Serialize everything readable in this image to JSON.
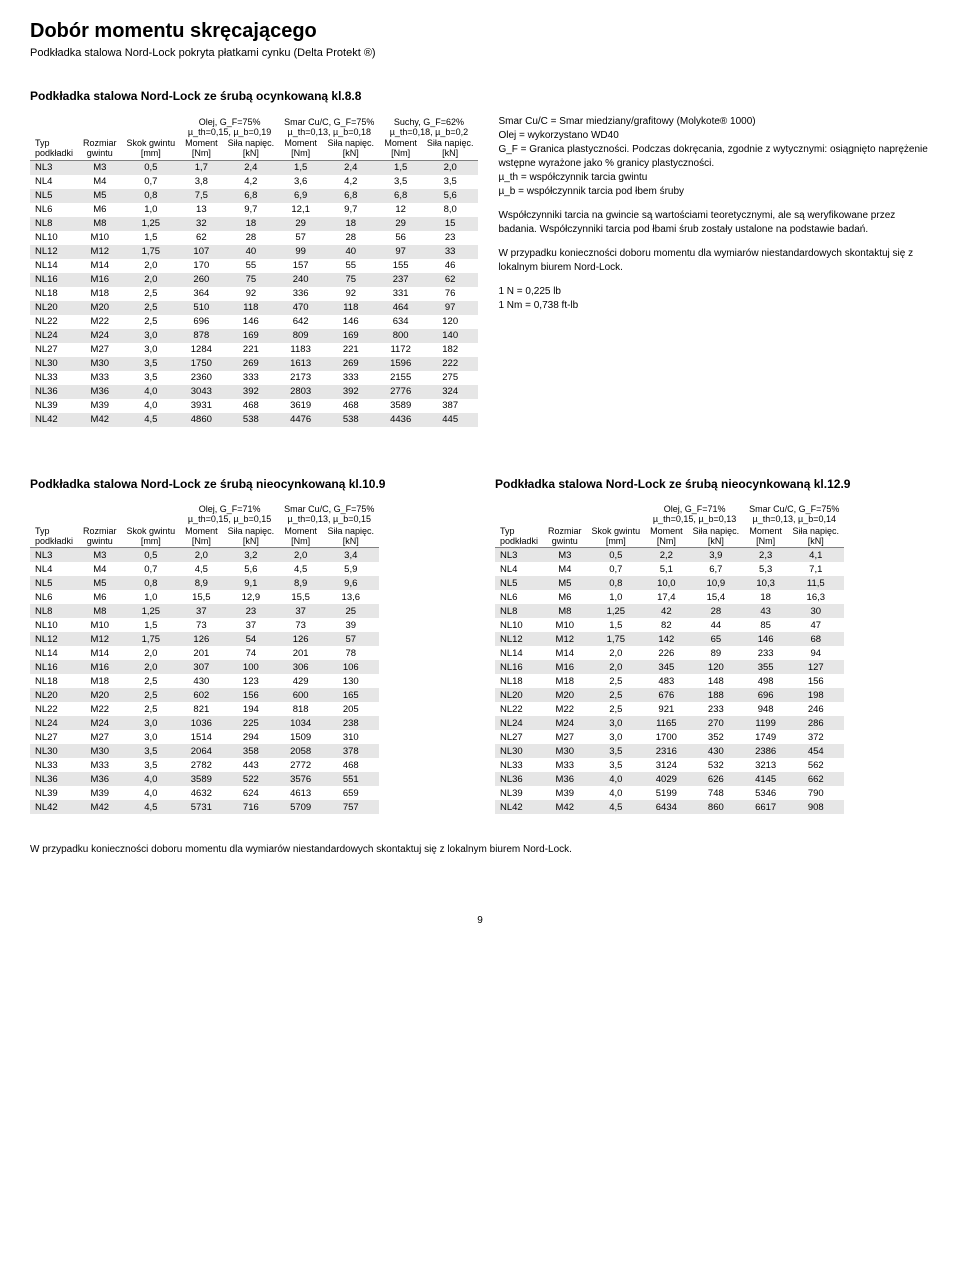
{
  "title": "Dobór momentu skręcającego",
  "subtitle": "Podkładka stalowa Nord-Lock pokryta płatkami cynku (Delta Protekt ®)",
  "table1": {
    "heading": "Podkładka stalowa Nord-Lock ze śrubą ocynkowaną kl.8.8",
    "cond_labels": [
      "Olej, G_F=75%",
      "Smar Cu/C, G_F=75%",
      "Suchy, G_F=62%"
    ],
    "cond_sublabels": [
      "µ_th=0,15, µ_b=0,19",
      "µ_th=0,13, µ_b=0,18",
      "µ_th=0,18, µ_b=0,2"
    ],
    "col_headers": {
      "typ": "Typ podkładki",
      "rozmiar": "Rozmiar gwintu",
      "skok": "Skok gwintu [mm]",
      "moment": "Moment [Nm]",
      "sila": "Siła napięc. [kN]"
    },
    "rows": [
      [
        "NL3",
        "M3",
        "0,5",
        "1,7",
        "2,4",
        "1,5",
        "2,4",
        "1,5",
        "2,0"
      ],
      [
        "NL4",
        "M4",
        "0,7",
        "3,8",
        "4,2",
        "3,6",
        "4,2",
        "3,5",
        "3,5"
      ],
      [
        "NL5",
        "M5",
        "0,8",
        "7,5",
        "6,8",
        "6,9",
        "6,8",
        "6,8",
        "5,6"
      ],
      [
        "NL6",
        "M6",
        "1,0",
        "13",
        "9,7",
        "12,1",
        "9,7",
        "12",
        "8,0"
      ],
      [
        "NL8",
        "M8",
        "1,25",
        "32",
        "18",
        "29",
        "18",
        "29",
        "15"
      ],
      [
        "NL10",
        "M10",
        "1,5",
        "62",
        "28",
        "57",
        "28",
        "56",
        "23"
      ],
      [
        "NL12",
        "M12",
        "1,75",
        "107",
        "40",
        "99",
        "40",
        "97",
        "33"
      ],
      [
        "NL14",
        "M14",
        "2,0",
        "170",
        "55",
        "157",
        "55",
        "155",
        "46"
      ],
      [
        "NL16",
        "M16",
        "2,0",
        "260",
        "75",
        "240",
        "75",
        "237",
        "62"
      ],
      [
        "NL18",
        "M18",
        "2,5",
        "364",
        "92",
        "336",
        "92",
        "331",
        "76"
      ],
      [
        "NL20",
        "M20",
        "2,5",
        "510",
        "118",
        "470",
        "118",
        "464",
        "97"
      ],
      [
        "NL22",
        "M22",
        "2,5",
        "696",
        "146",
        "642",
        "146",
        "634",
        "120"
      ],
      [
        "NL24",
        "M24",
        "3,0",
        "878",
        "169",
        "809",
        "169",
        "800",
        "140"
      ],
      [
        "NL27",
        "M27",
        "3,0",
        "1284",
        "221",
        "1183",
        "221",
        "1172",
        "182"
      ],
      [
        "NL30",
        "M30",
        "3,5",
        "1750",
        "269",
        "1613",
        "269",
        "1596",
        "222"
      ],
      [
        "NL33",
        "M33",
        "3,5",
        "2360",
        "333",
        "2173",
        "333",
        "2155",
        "275"
      ],
      [
        "NL36",
        "M36",
        "4,0",
        "3043",
        "392",
        "2803",
        "392",
        "2776",
        "324"
      ],
      [
        "NL39",
        "M39",
        "4,0",
        "3931",
        "468",
        "3619",
        "468",
        "3589",
        "387"
      ],
      [
        "NL42",
        "M42",
        "4,5",
        "4860",
        "538",
        "4476",
        "538",
        "4436",
        "445"
      ]
    ]
  },
  "notes": {
    "p1": "Smar Cu/C = Smar miedziany/grafitowy (Molykote® 1000)\nOlej = wykorzystano WD40\nG_F = Granica plastyczności. Podczas dokręcania, zgodnie z wytycznymi: osiągnięto naprężenie wstępne wyrażone jako % granicy plastyczności.\nµ_th = współczynnik tarcia gwintu\nµ_b = współczynnik tarcia pod łbem śruby",
    "p2": "Współczynniki tarcia na gwincie są wartościami teoretycznymi, ale są weryfikowane przez badania. Współczynniki tarcia pod łbami śrub zostały ustalone na podstawie badań.",
    "p3": "W przypadku konieczności doboru momentu dla wymiarów niestandardowych skontaktuj się z lokalnym biurem Nord-Lock.",
    "p4": "1 N = 0,225 lb\n1 Nm = 0,738 ft-lb"
  },
  "tableL": {
    "heading": "Podkładka stalowa Nord-Lock ze śrubą nieocynkowaną kl.10.9",
    "cond_labels": [
      "Olej, G_F=71%",
      "Smar Cu/C, G_F=75%"
    ],
    "cond_sublabels": [
      "µ_th=0,15, µ_b=0,15",
      "µ_th=0,13, µ_b=0,15"
    ],
    "rows": [
      [
        "NL3",
        "M3",
        "0,5",
        "2,0",
        "3,2",
        "2,0",
        "3,4"
      ],
      [
        "NL4",
        "M4",
        "0,7",
        "4,5",
        "5,6",
        "4,5",
        "5,9"
      ],
      [
        "NL5",
        "M5",
        "0,8",
        "8,9",
        "9,1",
        "8,9",
        "9,6"
      ],
      [
        "NL6",
        "M6",
        "1,0",
        "15,5",
        "12,9",
        "15,5",
        "13,6"
      ],
      [
        "NL8",
        "M8",
        "1,25",
        "37",
        "23",
        "37",
        "25"
      ],
      [
        "NL10",
        "M10",
        "1,5",
        "73",
        "37",
        "73",
        "39"
      ],
      [
        "NL12",
        "M12",
        "1,75",
        "126",
        "54",
        "126",
        "57"
      ],
      [
        "NL14",
        "M14",
        "2,0",
        "201",
        "74",
        "201",
        "78"
      ],
      [
        "NL16",
        "M16",
        "2,0",
        "307",
        "100",
        "306",
        "106"
      ],
      [
        "NL18",
        "M18",
        "2,5",
        "430",
        "123",
        "429",
        "130"
      ],
      [
        "NL20",
        "M20",
        "2,5",
        "602",
        "156",
        "600",
        "165"
      ],
      [
        "NL22",
        "M22",
        "2,5",
        "821",
        "194",
        "818",
        "205"
      ],
      [
        "NL24",
        "M24",
        "3,0",
        "1036",
        "225",
        "1034",
        "238"
      ],
      [
        "NL27",
        "M27",
        "3,0",
        "1514",
        "294",
        "1509",
        "310"
      ],
      [
        "NL30",
        "M30",
        "3,5",
        "2064",
        "358",
        "2058",
        "378"
      ],
      [
        "NL33",
        "M33",
        "3,5",
        "2782",
        "443",
        "2772",
        "468"
      ],
      [
        "NL36",
        "M36",
        "4,0",
        "3589",
        "522",
        "3576",
        "551"
      ],
      [
        "NL39",
        "M39",
        "4,0",
        "4632",
        "624",
        "4613",
        "659"
      ],
      [
        "NL42",
        "M42",
        "4,5",
        "5731",
        "716",
        "5709",
        "757"
      ]
    ]
  },
  "tableR": {
    "heading": "Podkładka stalowa Nord-Lock ze śrubą nieocynkowaną kl.12.9",
    "cond_labels": [
      "Olej, G_F=71%",
      "Smar Cu/C, G_F=75%"
    ],
    "cond_sublabels": [
      "µ_th=0,15, µ_b=0,13",
      "µ_th=0,13, µ_b=0,14"
    ],
    "rows": [
      [
        "NL3",
        "M3",
        "0,5",
        "2,2",
        "3,9",
        "2,3",
        "4,1"
      ],
      [
        "NL4",
        "M4",
        "0,7",
        "5,1",
        "6,7",
        "5,3",
        "7,1"
      ],
      [
        "NL5",
        "M5",
        "0,8",
        "10,0",
        "10,9",
        "10,3",
        "11,5"
      ],
      [
        "NL6",
        "M6",
        "1,0",
        "17,4",
        "15,4",
        "18",
        "16,3"
      ],
      [
        "NL8",
        "M8",
        "1,25",
        "42",
        "28",
        "43",
        "30"
      ],
      [
        "NL10",
        "M10",
        "1,5",
        "82",
        "44",
        "85",
        "47"
      ],
      [
        "NL12",
        "M12",
        "1,75",
        "142",
        "65",
        "146",
        "68"
      ],
      [
        "NL14",
        "M14",
        "2,0",
        "226",
        "89",
        "233",
        "94"
      ],
      [
        "NL16",
        "M16",
        "2,0",
        "345",
        "120",
        "355",
        "127"
      ],
      [
        "NL18",
        "M18",
        "2,5",
        "483",
        "148",
        "498",
        "156"
      ],
      [
        "NL20",
        "M20",
        "2,5",
        "676",
        "188",
        "696",
        "198"
      ],
      [
        "NL22",
        "M22",
        "2,5",
        "921",
        "233",
        "948",
        "246"
      ],
      [
        "NL24",
        "M24",
        "3,0",
        "1165",
        "270",
        "1199",
        "286"
      ],
      [
        "NL27",
        "M27",
        "3,0",
        "1700",
        "352",
        "1749",
        "372"
      ],
      [
        "NL30",
        "M30",
        "3,5",
        "2316",
        "430",
        "2386",
        "454"
      ],
      [
        "NL33",
        "M33",
        "3,5",
        "3124",
        "532",
        "3213",
        "562"
      ],
      [
        "NL36",
        "M36",
        "4,0",
        "4029",
        "626",
        "4145",
        "662"
      ],
      [
        "NL39",
        "M39",
        "4,0",
        "5199",
        "748",
        "5346",
        "790"
      ],
      [
        "NL42",
        "M42",
        "4,5",
        "6434",
        "860",
        "6617",
        "908"
      ]
    ]
  },
  "footnote": "W przypadku konieczności doboru momentu dla wymiarów niestandardowych skontaktuj się z lokalnym biurem Nord-Lock.",
  "page_num": "9",
  "stripe_color": "#e6e6e6"
}
